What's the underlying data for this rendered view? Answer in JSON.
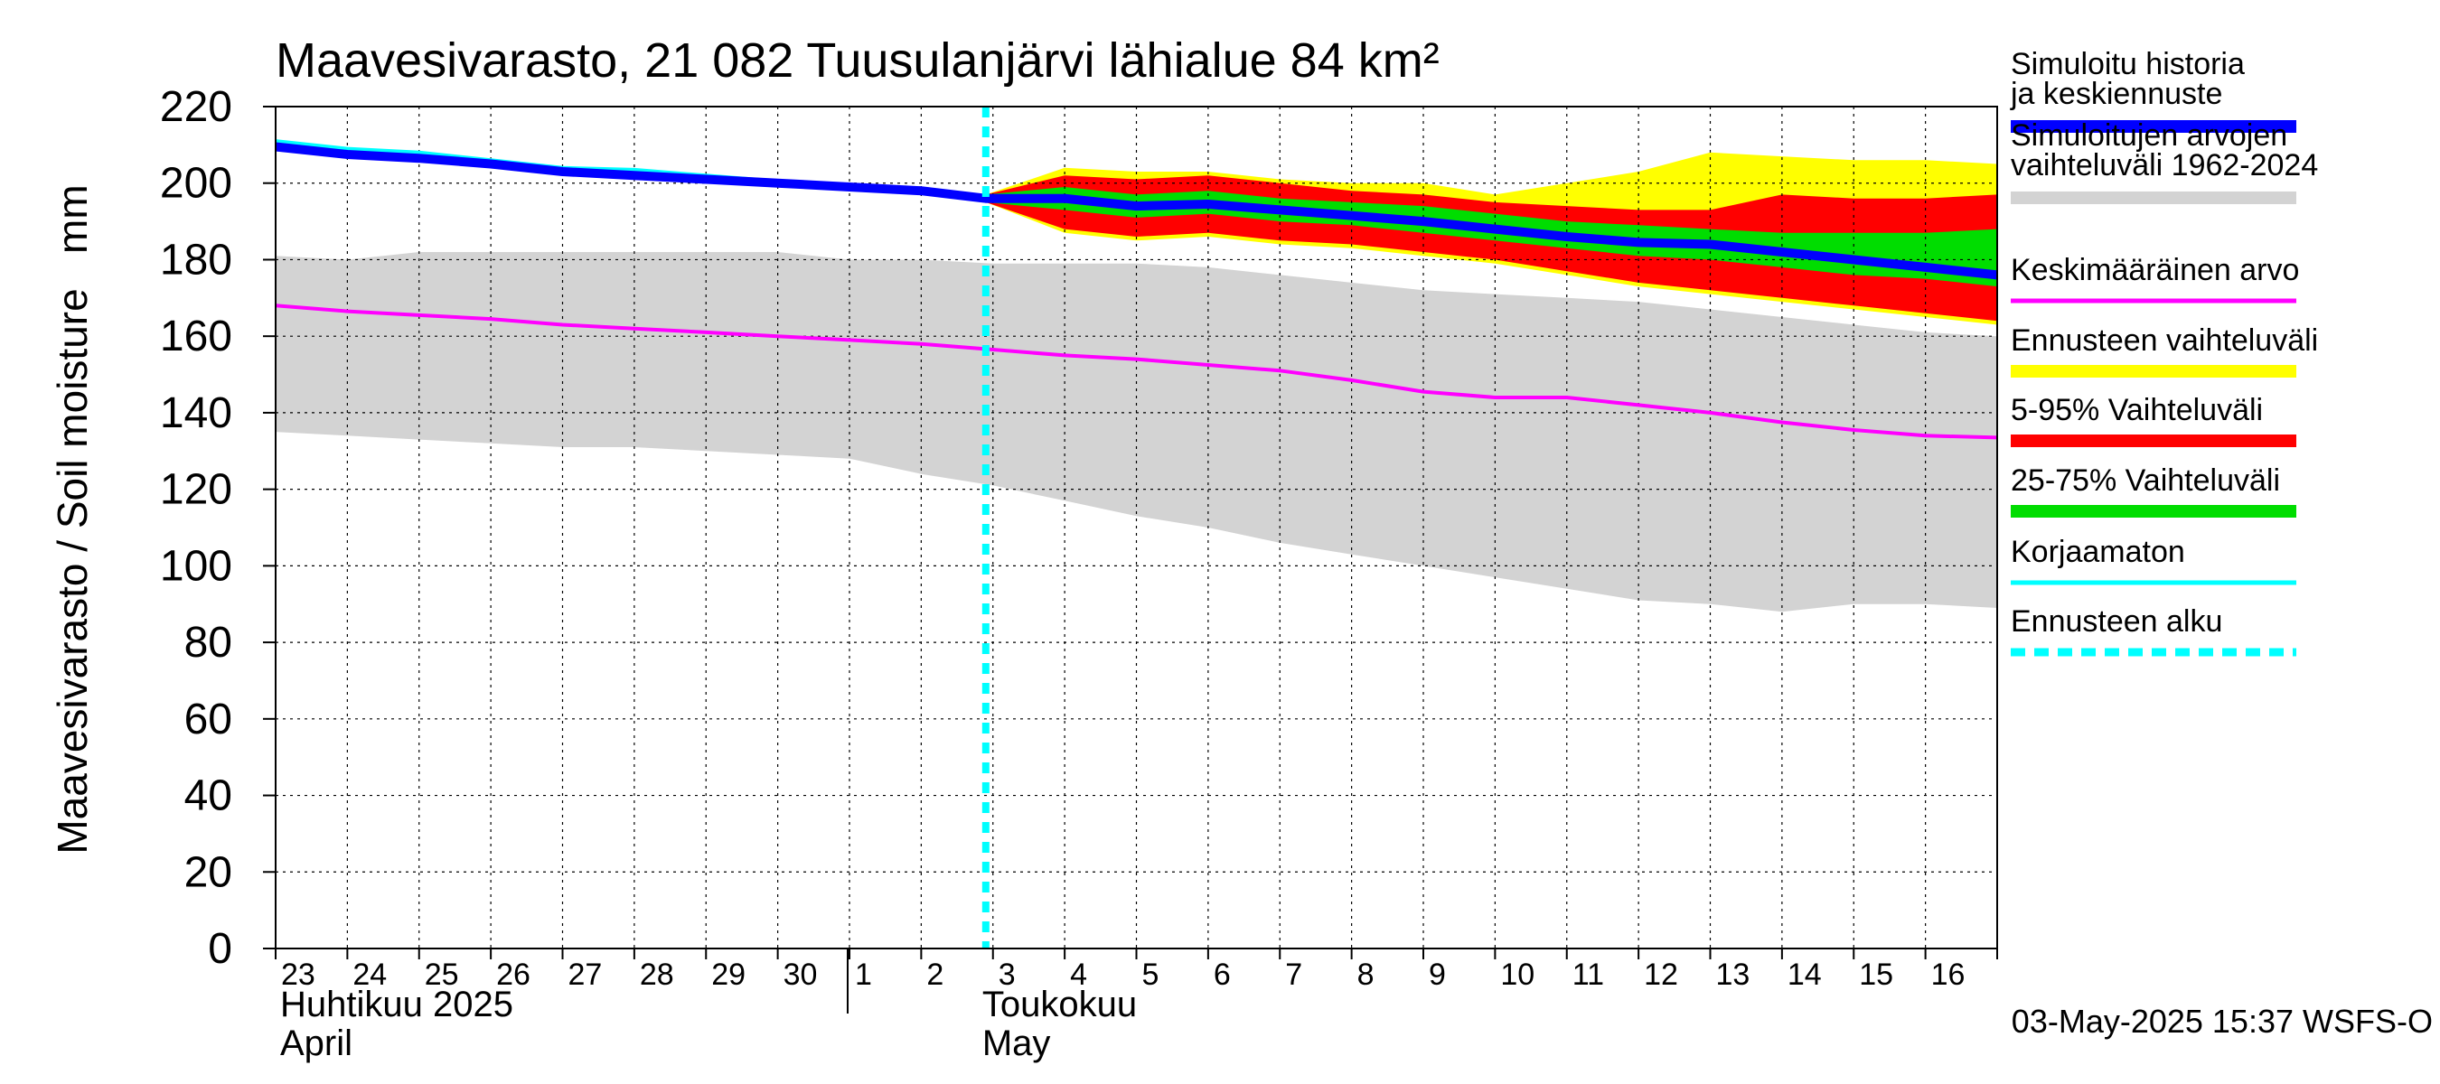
{
  "chart_data": {
    "type": "area",
    "title": "Maavesivarasto, 21 082 Tuusulanjärvi lähialue 84 km²",
    "ylabel": "Maavesivarasto / Soil moisture   mm",
    "ylim": [
      0,
      220
    ],
    "y_ticks": [
      0,
      20,
      40,
      60,
      80,
      100,
      120,
      140,
      160,
      180,
      200,
      220
    ],
    "x_range": [
      "2025-04-23",
      "2025-05-17"
    ],
    "x_tick_labels": [
      "23",
      "24",
      "25",
      "26",
      "27",
      "28",
      "29",
      "30",
      "1",
      "2",
      "3",
      "4",
      "5",
      "6",
      "7",
      "8",
      "9",
      "10",
      "11",
      "12",
      "13",
      "14",
      "15",
      "16"
    ],
    "month_labels": [
      {
        "fi": "Huhtikuu  2025",
        "en": "April",
        "start": "2025-04-23"
      },
      {
        "fi": "Toukokuu",
        "en": "May",
        "start": "2025-05-02"
      }
    ],
    "grid": true,
    "forecast_start": "2025-05-02.9",
    "legend_position": "right",
    "series": [
      {
        "name": "Simuloitujen arvojen vaihteluväli 1962-2024",
        "kind": "band",
        "color": "#d3d3d3",
        "x": [
          "2025-04-23",
          "2025-04-24",
          "2025-04-25",
          "2025-04-26",
          "2025-04-27",
          "2025-04-28",
          "2025-04-29",
          "2025-04-30",
          "2025-05-01",
          "2025-05-02",
          "2025-05-03",
          "2025-05-04",
          "2025-05-05",
          "2025-05-06",
          "2025-05-07",
          "2025-05-08",
          "2025-05-09",
          "2025-05-10",
          "2025-05-11",
          "2025-05-12",
          "2025-05-13",
          "2025-05-14",
          "2025-05-15",
          "2025-05-16",
          "2025-05-17"
        ],
        "upper": [
          181,
          180,
          182,
          182,
          182,
          182,
          182,
          182,
          180,
          180,
          179,
          179,
          179,
          178,
          176,
          174,
          172,
          171,
          170,
          169,
          167,
          165,
          163,
          161,
          160
        ],
        "lower": [
          135,
          134,
          133,
          132,
          131,
          131,
          130,
          129,
          128,
          124,
          121,
          117,
          113,
          110,
          106,
          103,
          100,
          97,
          94,
          91,
          90,
          88,
          90,
          90,
          89
        ]
      },
      {
        "name": "Ennusteen vaihteluväli",
        "kind": "band",
        "color": "#ffff00",
        "x": [
          "2025-05-02.9",
          "2025-05-04",
          "2025-05-05",
          "2025-05-06",
          "2025-05-07",
          "2025-05-08",
          "2025-05-09",
          "2025-05-10",
          "2025-05-11",
          "2025-05-12",
          "2025-05-13",
          "2025-05-14",
          "2025-05-15",
          "2025-05-16",
          "2025-05-17"
        ],
        "upper": [
          197,
          204,
          203,
          203,
          201,
          200,
          200,
          197,
          200,
          203,
          208,
          207,
          206,
          206,
          205
        ],
        "lower": [
          195,
          187,
          185,
          186,
          184,
          183,
          181,
          179,
          176,
          173,
          171,
          169,
          167,
          165,
          163
        ]
      },
      {
        "name": "5-95% Vaihteluväli",
        "kind": "band",
        "color": "#ff0000",
        "x": [
          "2025-05-02.9",
          "2025-05-04",
          "2025-05-05",
          "2025-05-06",
          "2025-05-07",
          "2025-05-08",
          "2025-05-09",
          "2025-05-10",
          "2025-05-11",
          "2025-05-12",
          "2025-05-13",
          "2025-05-14",
          "2025-05-15",
          "2025-05-16",
          "2025-05-17"
        ],
        "upper": [
          197,
          202,
          201,
          202,
          200,
          198,
          197,
          195,
          194,
          193,
          193,
          197,
          196,
          196,
          197
        ],
        "lower": [
          195,
          188,
          186,
          187,
          185,
          184,
          182,
          180,
          177,
          174,
          172,
          170,
          168,
          166,
          164
        ]
      },
      {
        "name": "25-75% Vaihteluväli",
        "kind": "band",
        "color": "#00dd00",
        "x": [
          "2025-05-02.9",
          "2025-05-04",
          "2025-05-05",
          "2025-05-06",
          "2025-05-07",
          "2025-05-08",
          "2025-05-09",
          "2025-05-10",
          "2025-05-11",
          "2025-05-12",
          "2025-05-13",
          "2025-05-14",
          "2025-05-15",
          "2025-05-16",
          "2025-05-17"
        ],
        "upper": [
          197,
          199,
          197,
          198,
          196,
          195,
          194,
          192,
          190,
          189,
          188,
          187,
          187,
          187,
          188
        ],
        "lower": [
          195,
          193,
          191,
          192,
          190,
          189,
          187,
          185,
          183,
          181,
          180,
          178,
          176,
          175,
          173
        ]
      },
      {
        "name": "Keskimääräinen arvo",
        "kind": "line",
        "color": "#ff00ff",
        "x": [
          "2025-04-23",
          "2025-04-24",
          "2025-04-25",
          "2025-04-26",
          "2025-04-27",
          "2025-04-28",
          "2025-04-29",
          "2025-04-30",
          "2025-05-01",
          "2025-05-02",
          "2025-05-03",
          "2025-05-04",
          "2025-05-05",
          "2025-05-06",
          "2025-05-07",
          "2025-05-08",
          "2025-05-09",
          "2025-05-10",
          "2025-05-11",
          "2025-05-12",
          "2025-05-13",
          "2025-05-14",
          "2025-05-15",
          "2025-05-16",
          "2025-05-17"
        ],
        "values": [
          168,
          166.5,
          165.5,
          164.5,
          163,
          162,
          161,
          160,
          159,
          158,
          156.5,
          155,
          154,
          152.5,
          151,
          148.5,
          145.5,
          144,
          144,
          142,
          140,
          137.5,
          135.5,
          134,
          133.5
        ]
      },
      {
        "name": "Korjaamaton",
        "kind": "line",
        "color": "#00ffff",
        "x": [
          "2025-04-23",
          "2025-04-24",
          "2025-04-25",
          "2025-04-26",
          "2025-04-27",
          "2025-04-28",
          "2025-04-29",
          "2025-04-30",
          "2025-05-01",
          "2025-05-02",
          "2025-05-02.9"
        ],
        "values": [
          211,
          209,
          208,
          206,
          204,
          203.5,
          202,
          200.5,
          199.5,
          198,
          196
        ]
      },
      {
        "name": "Simuloitu historia ja keskiennuste",
        "kind": "line",
        "color": "#0000ff",
        "x": [
          "2025-04-23",
          "2025-04-24",
          "2025-04-25",
          "2025-04-26",
          "2025-04-27",
          "2025-04-28",
          "2025-04-29",
          "2025-04-30",
          "2025-05-01",
          "2025-05-02",
          "2025-05-02.9",
          "2025-05-04",
          "2025-05-05",
          "2025-05-06",
          "2025-05-07",
          "2025-05-08",
          "2025-05-09",
          "2025-05-10",
          "2025-05-11",
          "2025-05-12",
          "2025-05-13",
          "2025-05-14",
          "2025-05-15",
          "2025-05-16",
          "2025-05-17"
        ],
        "values": [
          209.5,
          207.5,
          206.5,
          205,
          203,
          202,
          201,
          200,
          199,
          198,
          196,
          196,
          194,
          194.5,
          193,
          191.5,
          190,
          188,
          186,
          184.5,
          184,
          182,
          180,
          178,
          176
        ]
      }
    ]
  },
  "legend": [
    {
      "label": "Simuloitu historia ja keskiennuste",
      "color": "#0000ff",
      "style": "solid"
    },
    {
      "label": "Simuloitujen arvojen vaihteluväli 1962-2024",
      "color": "#d3d3d3",
      "style": "solid"
    },
    {
      "label": "Keskimääräinen arvo",
      "color": "#ff00ff",
      "style": "thin"
    },
    {
      "label": "Ennusteen vaihteluväli",
      "color": "#ffff00",
      "style": "solid"
    },
    {
      "label": "5-95% Vaihteluväli",
      "color": "#ff0000",
      "style": "solid"
    },
    {
      "label": "25-75% Vaihteluväli",
      "color": "#00dd00",
      "style": "solid"
    },
    {
      "label": "Korjaamaton",
      "color": "#00ffff",
      "style": "thin"
    },
    {
      "label": "Ennusteen alku",
      "color": "#00ffff",
      "style": "dashed"
    }
  ],
  "footer": {
    "timestamp": "03-May-2025 15:37 WSFS-O"
  }
}
